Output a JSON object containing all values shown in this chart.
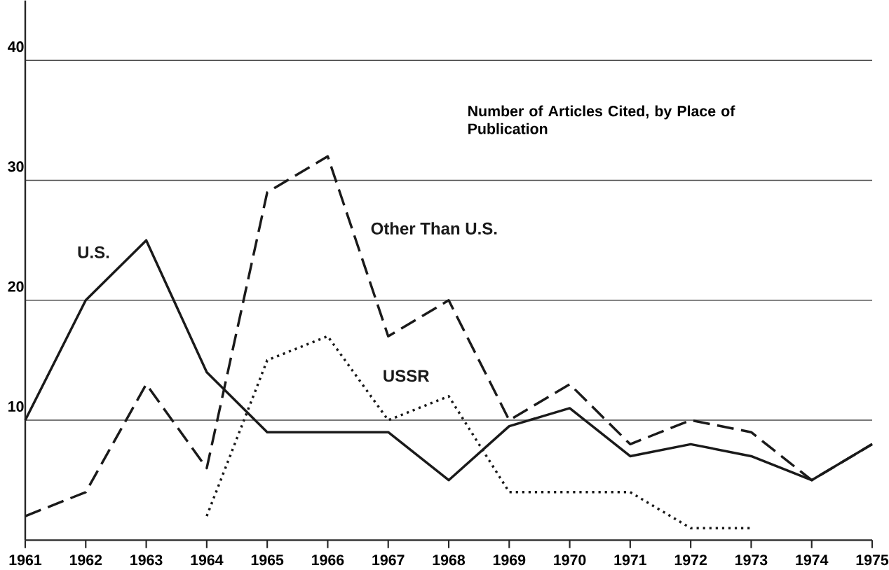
{
  "chart_data": {
    "type": "line",
    "title": "Number of Articles Cited, by Place of Publication",
    "x": [
      1961,
      1962,
      1963,
      1964,
      1965,
      1966,
      1967,
      1968,
      1969,
      1970,
      1971,
      1972,
      1973,
      1974,
      1975
    ],
    "series": [
      {
        "name": "U.S.",
        "color": "#1a1a1a",
        "line_style": "solid",
        "values": [
          10,
          20,
          25,
          14,
          9,
          9,
          9,
          5,
          9.5,
          11,
          7,
          8,
          7,
          5,
          8
        ]
      },
      {
        "name": "Other Than U.S.",
        "color": "#1a1a1a",
        "line_style": "dashed",
        "values": [
          2,
          4,
          13,
          6,
          29,
          32,
          17,
          20,
          10,
          13,
          8,
          10,
          9,
          5,
          8
        ]
      },
      {
        "name": "USSR",
        "color": "#1a1a1a",
        "line_style": "dotted",
        "values": [
          null,
          null,
          null,
          2,
          15,
          17,
          10,
          12,
          4,
          4,
          4,
          1,
          1,
          null,
          null
        ]
      }
    ],
    "xlim": [
      1961,
      1975
    ],
    "ylim": [
      0,
      45
    ],
    "xticks": [
      1961,
      1962,
      1963,
      1964,
      1965,
      1966,
      1967,
      1968,
      1969,
      1970,
      1971,
      1972,
      1973,
      1974,
      1975
    ],
    "yticks": [
      10,
      20,
      30,
      40
    ],
    "grid": "y",
    "marker": "none"
  }
}
